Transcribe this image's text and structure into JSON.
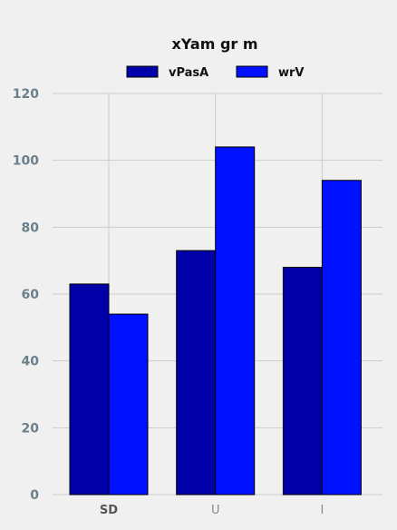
{
  "chart_data": {
    "type": "bar",
    "title": "xYam gr m",
    "xlabel": "",
    "ylabel": "",
    "categories": [
      "SD",
      "U",
      "I"
    ],
    "series": [
      {
        "name": "vPasA",
        "values": [
          63,
          73,
          68
        ],
        "color": "#0000aa"
      },
      {
        "name": "wrV",
        "values": [
          54,
          104,
          94
        ],
        "color": "#0011ff"
      }
    ],
    "ylim": [
      0,
      120
    ],
    "yticks": [
      0,
      20,
      40,
      60,
      80,
      100,
      120
    ],
    "grid": true,
    "legend_position": "top-center",
    "colors": {
      "background": "#f0f0f0",
      "grid": "#cbcbcb",
      "ytick_text": "#6a7f8a",
      "xtick_first_text": "#555555",
      "xtick_text": "#8a8a8a"
    }
  }
}
